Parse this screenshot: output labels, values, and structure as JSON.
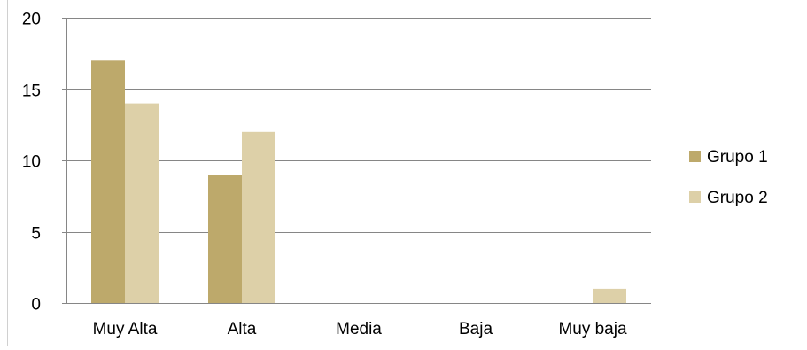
{
  "chart_data": {
    "type": "bar",
    "title": "",
    "xlabel": "",
    "ylabel": "",
    "categories": [
      "Muy Alta",
      "Alta",
      "Media",
      "Baja",
      "Muy baja"
    ],
    "series": [
      {
        "name": "Grupo 1",
        "values": [
          17,
          9,
          0,
          0,
          0
        ],
        "color": "#bda96b"
      },
      {
        "name": "Grupo 2",
        "values": [
          14,
          12,
          0,
          0,
          1
        ],
        "color": "#ddd0a8"
      }
    ],
    "ylim": [
      0,
      20
    ],
    "yticks": [
      0,
      5,
      10,
      15,
      20
    ],
    "grid": true,
    "legend": "right"
  }
}
